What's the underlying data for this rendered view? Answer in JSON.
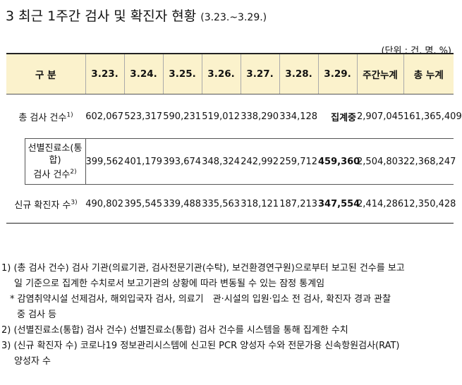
{
  "title": {
    "main": "3 최근 1주간 검사 및 확진자 현황",
    "period": "(3.23.~3.29.)"
  },
  "unit": "(단위 : 건, 명, %)",
  "table": {
    "headers": [
      "구 분",
      "3.23.",
      "3.24.",
      "3.25.",
      "3.26.",
      "3.27.",
      "3.28.",
      "3.29.",
      "주간누계",
      "총 누계"
    ],
    "rows": [
      {
        "label": "총 검사 건수",
        "sup": "1)",
        "values": [
          "602,067",
          "523,317",
          "590,231",
          "519,012",
          "338,290",
          "334,128",
          "집계중",
          "2,907,045",
          "161,365,409"
        ]
      },
      {
        "label_lines": [
          "선별진료소(통",
          "합)",
          "검사 건수"
        ],
        "sup": "2)",
        "values": [
          "399,562",
          "401,179",
          "393,674",
          "348,324",
          "242,992",
          "259,712",
          "459,360",
          "2,504,803",
          "22,368,247"
        ]
      },
      {
        "label": "신규 확진자 수",
        "sup": "3)",
        "values": [
          "490,802",
          "395,545",
          "339,488",
          "335,563",
          "318,121",
          "187,213",
          "347,554",
          "2,414,286",
          "12,350,428"
        ]
      }
    ]
  },
  "notes": {
    "n1": [
      "1) (총 검사 건수) 검사 기관(의료기관, 검사전문기관(수탁), 보건환경연구원)으로부터 보고된 건수를 보고",
      "일 기준으로 집계한 수치로서 보고기관의 상황에 따라 변동될 수 있는 잠정 통계임"
    ],
    "n1b": [
      "* 감염취약시설 선제검사, 해외입국자 검사, 의료기　관·시설의 입원·입소 전 검사, 확진자 경과 관찰",
      "중 검사 등"
    ],
    "n2": [
      "2) (선별진료소(통합) 검사 건수) 선별진료소(통합) 검사 건수를 시스템을 통해 집계한 수치"
    ],
    "n3": [
      "3) (신규 확진자 수) 코로나19 정보관리시스템에 신고된 PCR 양성자 수와 전문가용 신속항원검사(RAT)",
      "양성자 수"
    ]
  }
}
